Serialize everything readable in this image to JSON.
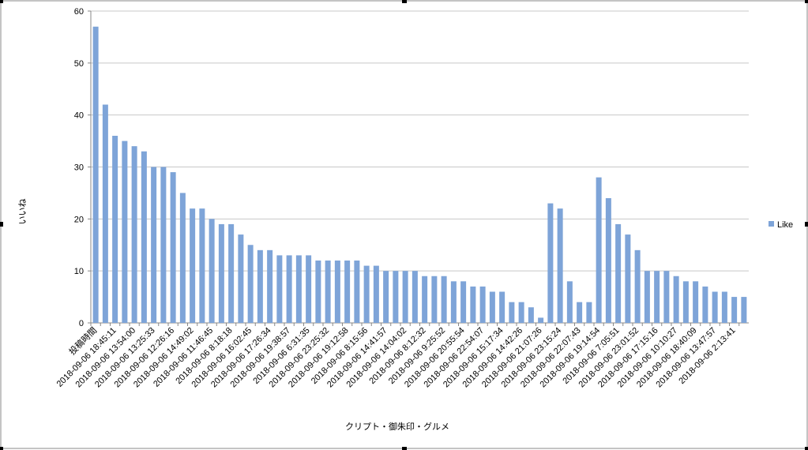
{
  "chart_data": {
    "type": "bar",
    "x_label": "クリプト・御朱印・グルメ",
    "y_label": "いいね",
    "categories": [
      "投稿時間",
      null,
      "2018-09-06 18:45:11",
      null,
      "2018-09-06 13:54:00",
      null,
      "2018-09-06 13:25:33",
      null,
      "2018-09-06 12:26:16",
      null,
      "2018-09-06 14:49:02",
      null,
      "2018-09-06 11:46:45",
      null,
      "2018-09-06 8:18:18",
      null,
      "2018-09-06 16:02:45",
      null,
      "2018-09-06 17:26:34",
      null,
      "2018-09-06 19:38:57",
      null,
      "2018-09-06 6:31:35",
      null,
      "2018-09-06 23:25:32",
      null,
      "2018-09-06 19:12:58",
      null,
      "2018-09-06 8:15:56",
      null,
      "2018-09-06 14:41:57",
      null,
      "2018-09-06 14:04:02",
      null,
      "2018-09-06 8:12:32",
      null,
      "2018-09-06 9:25:52",
      null,
      "2018-09-06 20:55:54",
      null,
      "2018-09-06 22:54:07",
      null,
      "2018-09-06 15:17:34",
      null,
      "2018-09-06 14:42:26",
      null,
      "2018-09-06 21:07:26",
      null,
      "2018-09-06 23:15:24",
      null,
      "2018-09-06 22:07:43",
      null,
      "2018-09-06 19:14:54",
      null,
      "2018-09-06 7:05:51",
      null,
      "2018-09-06 23:01:52",
      null,
      "2018-09-06 17:15:16",
      null,
      "2018-09-06 10:10:27",
      null,
      "2018-09-06 18:40:09",
      null,
      "2018-09-06 13:47:57",
      null,
      "2018-09-06 2:13:41",
      null
    ],
    "series": [
      {
        "name": "Like",
        "color": "#7ea4d8",
        "values": [
          57,
          42,
          36,
          35,
          34,
          33,
          30,
          30,
          29,
          25,
          22,
          22,
          20,
          19,
          19,
          17,
          15,
          14,
          14,
          13,
          13,
          13,
          13,
          12,
          12,
          12,
          12,
          12,
          11,
          11,
          10,
          10,
          10,
          10,
          9,
          9,
          9,
          8,
          8,
          7,
          7,
          6,
          6,
          4,
          4,
          3,
          1,
          23,
          22,
          8,
          4,
          4,
          28,
          24,
          19,
          17,
          14,
          10,
          10,
          10,
          9,
          8,
          8,
          7,
          6,
          6,
          5,
          5
        ]
      }
    ],
    "ylim": [
      0,
      60
    ],
    "yticks": [
      0,
      10,
      20,
      30,
      40,
      50,
      60
    ],
    "grid": true,
    "legend": "right"
  }
}
